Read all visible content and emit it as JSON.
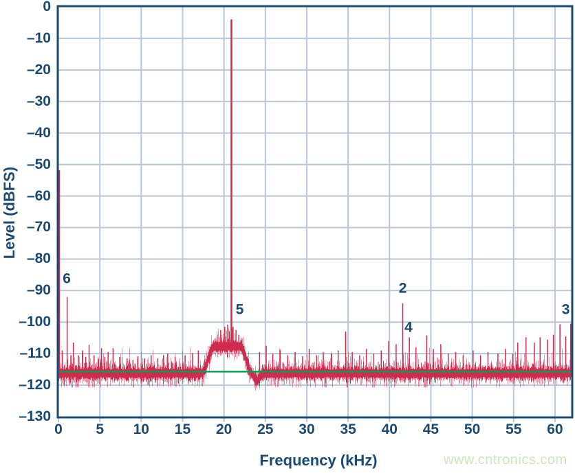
{
  "page": {
    "background": "#ffffff"
  },
  "watermark": {
    "text": "www.cntronics.com",
    "color": "#c9e8b7"
  },
  "chart_data": {
    "type": "line",
    "title": "",
    "xlabel": "Frequency (kHz)",
    "ylabel": "Level (dBFS)",
    "xlim": [
      0,
      62
    ],
    "ylim": [
      -130,
      0
    ],
    "x_tick_values": [
      0,
      5,
      10,
      15,
      20,
      25,
      30,
      35,
      40,
      45,
      50,
      55,
      60
    ],
    "x_tick_labels": [
      "0",
      "5",
      "10",
      "15",
      "20",
      "25",
      "30",
      "35",
      "40",
      "45",
      "50",
      "55",
      "60"
    ],
    "y_tick_values": [
      0,
      -10,
      -20,
      -30,
      -40,
      -50,
      -60,
      -70,
      -80,
      -90,
      -100,
      -110,
      -120,
      -130
    ],
    "y_tick_labels": [
      "0",
      "–10",
      "–20",
      "–30",
      "–40",
      "–50",
      "–60",
      "–70",
      "–80",
      "–90",
      "–100",
      "–110",
      "–120",
      "–130"
    ],
    "grid": true,
    "legend": false,
    "colors": {
      "axis": "#1a4a72",
      "grid": "#bac7d7",
      "trace": "#d02a4e",
      "reference": "#00a24f"
    },
    "reference_line": {
      "level_dbfs": -115.7,
      "description": "average noise floor line"
    },
    "noise_floor": {
      "mean_dbfs": -116.2,
      "top_typ_dbfs": -113.5,
      "bottom_typ_dbfs": -119.0
    },
    "dc_spike": {
      "freq_khz": 0.1,
      "level_dbfs": -51.8
    },
    "main_tone": {
      "freq_khz": 20.9,
      "level_dbfs": -4.0
    },
    "skirt": {
      "range_khz": [
        17.2,
        23.4
      ],
      "plateau_khz": [
        18.9,
        21.9
      ],
      "peak_level_dbfs": -107.6
    },
    "notch": {
      "center_khz": 24.0,
      "sigma_khz": 0.3,
      "depth_db": 2.3
    },
    "spurs": [
      [
        0.45,
        -109
      ],
      [
        1.05,
        -92
      ],
      [
        1.5,
        -110.5
      ],
      [
        1.8,
        -106.5
      ],
      [
        2.4,
        -110.5
      ],
      [
        2.9,
        -109
      ],
      [
        3.3,
        -111
      ],
      [
        3.7,
        -107.2
      ],
      [
        4.3,
        -110.5
      ],
      [
        4.8,
        -111.5
      ],
      [
        5.2,
        -108.3
      ],
      [
        5.6,
        -111
      ],
      [
        6.0,
        -109.5
      ],
      [
        6.6,
        -108.3
      ],
      [
        7.4,
        -111
      ],
      [
        8.3,
        -111.5
      ],
      [
        9.0,
        -112
      ],
      [
        9.6,
        -110.8
      ],
      [
        10.4,
        -111.5
      ],
      [
        11.2,
        -110.5
      ],
      [
        12.0,
        -111.5
      ],
      [
        12.7,
        -110.5
      ],
      [
        13.2,
        -110
      ],
      [
        14.1,
        -111
      ],
      [
        15.3,
        -110.5
      ],
      [
        16.2,
        -109.8
      ],
      [
        16.9,
        -109
      ],
      [
        19.6,
        -102.5
      ],
      [
        20.1,
        -101.5
      ],
      [
        20.45,
        -100.8
      ],
      [
        21.1,
        -101.5
      ],
      [
        21.45,
        -102.5
      ],
      [
        21.8,
        -104
      ],
      [
        24.3,
        -109.5
      ],
      [
        25.1,
        -107.5
      ],
      [
        25.9,
        -110
      ],
      [
        26.8,
        -109
      ],
      [
        27.7,
        -110.5
      ],
      [
        28.6,
        -109.5
      ],
      [
        29.5,
        -110.8
      ],
      [
        30.3,
        -108.5
      ],
      [
        31.2,
        -110.5
      ],
      [
        32.0,
        -109.5
      ],
      [
        33.0,
        -110
      ],
      [
        33.8,
        -109
      ],
      [
        34.7,
        -103
      ],
      [
        35.5,
        -109.5
      ],
      [
        36.4,
        -110.5
      ],
      [
        37.2,
        -108.5
      ],
      [
        38.1,
        -110
      ],
      [
        39.0,
        -109
      ],
      [
        39.9,
        -106
      ],
      [
        40.8,
        -107
      ],
      [
        41.6,
        -94
      ],
      [
        42.4,
        -104.8
      ],
      [
        43.2,
        -108
      ],
      [
        44.5,
        -104.2
      ],
      [
        45.3,
        -108.5
      ],
      [
        46.2,
        -107
      ],
      [
        47.1,
        -110
      ],
      [
        48.0,
        -109.5
      ],
      [
        48.9,
        -110.5
      ],
      [
        50.1,
        -109
      ],
      [
        51.0,
        -110.5
      ],
      [
        51.9,
        -109.5
      ],
      [
        53.1,
        -110
      ],
      [
        54.0,
        -108.5
      ],
      [
        54.9,
        -110
      ],
      [
        55.5,
        -106.5
      ],
      [
        56.5,
        -104.8
      ],
      [
        57.5,
        -106.5
      ],
      [
        58.2,
        -104.8
      ],
      [
        59.1,
        -105.5
      ],
      [
        59.8,
        -104
      ],
      [
        60.6,
        -100.7
      ],
      [
        61.3,
        -104.5
      ],
      [
        61.9,
        -100.5
      ]
    ],
    "annotations": [
      {
        "text": "6",
        "freq_khz": 1.0,
        "level_dbfs": -86.5
      },
      {
        "text": "5",
        "freq_khz": 21.9,
        "level_dbfs": -96.3
      },
      {
        "text": "2",
        "freq_khz": 41.6,
        "level_dbfs": -89.5
      },
      {
        "text": "4",
        "freq_khz": 42.3,
        "level_dbfs": -102.0
      },
      {
        "text": "3",
        "freq_khz": 61.3,
        "level_dbfs": -96.3
      }
    ]
  }
}
